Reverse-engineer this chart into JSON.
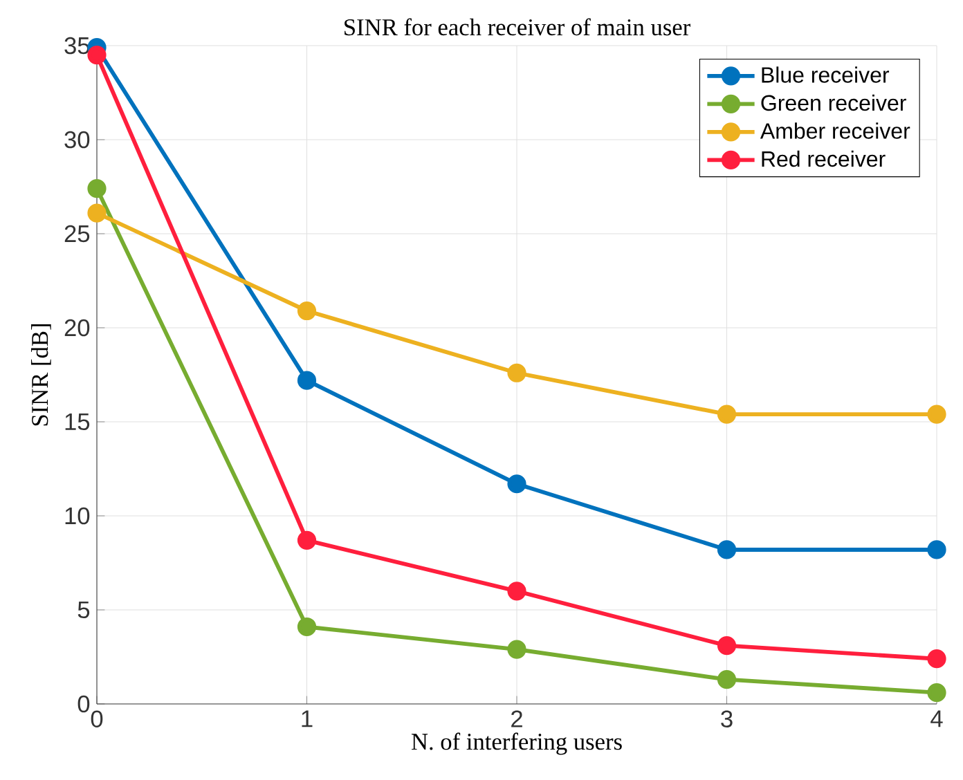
{
  "chart_data": {
    "type": "line",
    "title": "SINR for each receiver of main user",
    "xlabel": "N. of interfering users",
    "ylabel": "SINR [dB]",
    "x": [
      0,
      1,
      2,
      3,
      4
    ],
    "series": [
      {
        "name": "Blue receiver",
        "color": "#0072bd",
        "values": [
          34.9,
          17.2,
          11.7,
          8.2,
          8.2
        ]
      },
      {
        "name": "Green receiver",
        "color": "#77ac30",
        "values": [
          27.4,
          4.1,
          2.9,
          1.3,
          0.6
        ]
      },
      {
        "name": "Amber receiver",
        "color": "#edb120",
        "values": [
          26.1,
          20.9,
          17.6,
          15.4,
          15.4
        ]
      },
      {
        "name": "Red receiver",
        "color": "#ff1f3d",
        "values": [
          34.5,
          8.7,
          6.0,
          3.1,
          2.4
        ]
      }
    ],
    "xlim": [
      0,
      4
    ],
    "ylim": [
      0,
      35
    ],
    "xticks": [
      0,
      1,
      2,
      3,
      4
    ],
    "yticks": [
      0,
      5,
      10,
      15,
      20,
      25,
      30,
      35
    ],
    "grid": true,
    "legend": "top right",
    "marker": "circle",
    "line_style": "solid"
  }
}
